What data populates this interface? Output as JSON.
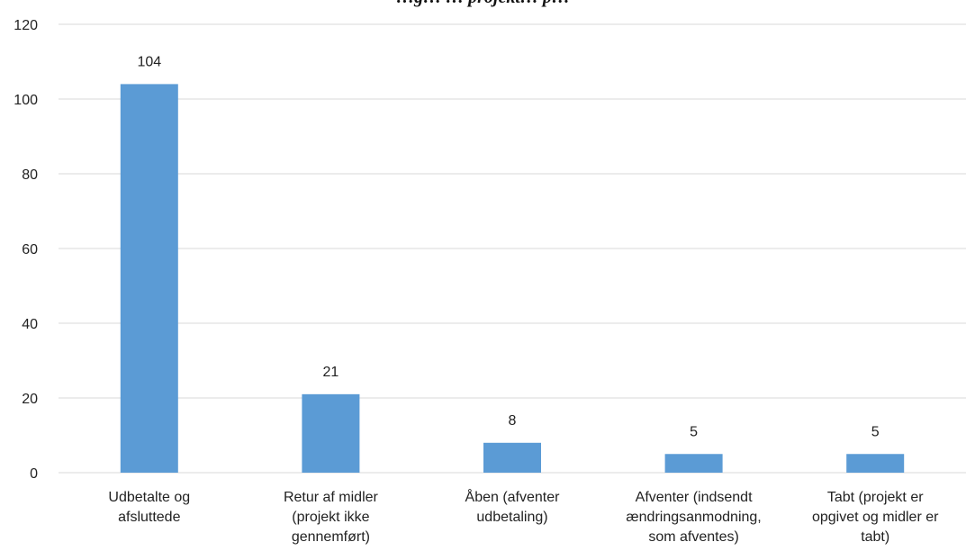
{
  "chart_data": {
    "type": "bar",
    "title": "…g… … projekt… p…",
    "categories": [
      [
        "Udbetalte og",
        "afsluttede"
      ],
      [
        "Retur af midler",
        "(projekt ikke",
        "gennemført)"
      ],
      [
        "Åben (afventer",
        "udbetaling)"
      ],
      [
        "Afventer (indsendt",
        "ændringsanmodning,",
        "som afventes)"
      ],
      [
        "Tabt (projekt er",
        "opgivet og midler er",
        "tabt)"
      ]
    ],
    "values": [
      104,
      21,
      8,
      5,
      5
    ],
    "data_labels": [
      "104",
      "21",
      "8",
      "5",
      "5"
    ],
    "ylim": [
      0,
      120
    ],
    "yticks": [
      "0",
      "20",
      "40",
      "60",
      "80",
      "100",
      "120"
    ],
    "grid": true,
    "legend": "none",
    "colors": {
      "bar": "#5B9BD5",
      "grid": "#D9D9D9",
      "text": "#222222"
    }
  }
}
